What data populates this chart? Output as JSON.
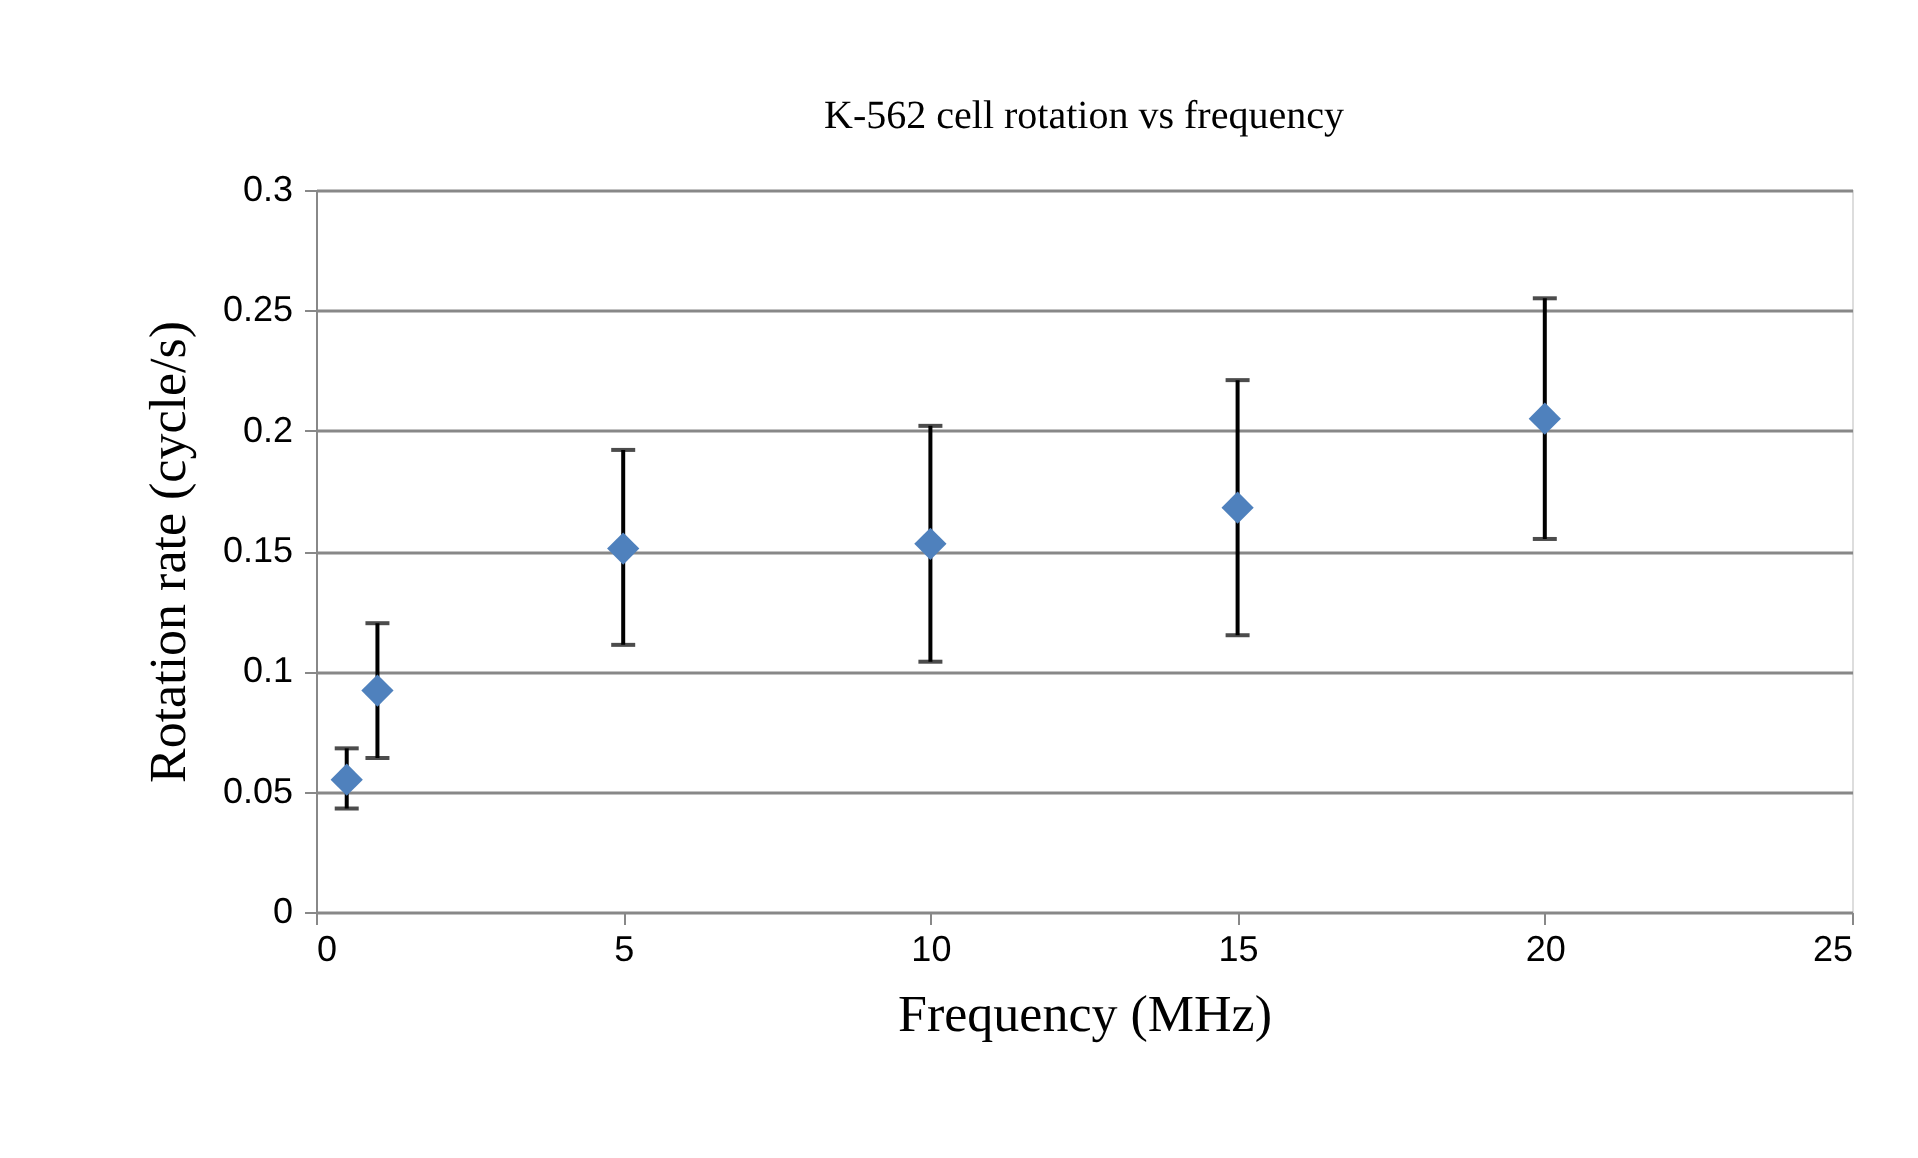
{
  "chart_data": {
    "type": "scatter",
    "title": "K-562 cell rotation vs frequency",
    "xlabel": "Frequency (MHz)",
    "ylabel": "Rotation rate (cycle/s)",
    "x": [
      0.5,
      1,
      5,
      10,
      15,
      20
    ],
    "series": [
      {
        "color": "#4f81bd",
        "values": [
          0.055,
          0.092,
          0.151,
          0.153,
          0.168,
          0.205
        ],
        "errors": [
          [
            0.043,
            0.068
          ],
          [
            0.064,
            0.12
          ],
          [
            0.111,
            0.192
          ],
          [
            0.104,
            0.202
          ],
          [
            0.115,
            0.221
          ],
          [
            0.155,
            0.255
          ]
        ]
      }
    ],
    "xlim": [
      0,
      25
    ],
    "xticks": [
      0,
      5,
      10,
      15,
      20,
      25
    ],
    "ylim": [
      0,
      0.3
    ],
    "yticks": [
      0,
      0.05,
      0.1,
      0.15,
      0.2,
      0.25,
      0.3
    ],
    "grid": "y",
    "marker": "diamond"
  }
}
